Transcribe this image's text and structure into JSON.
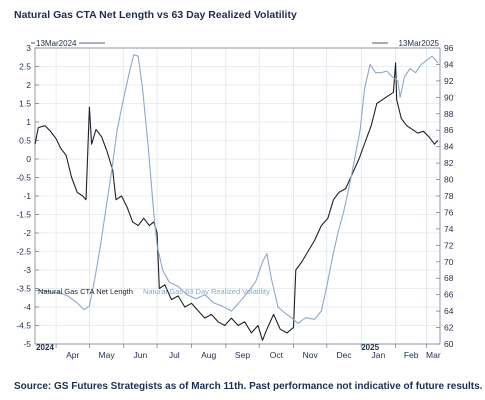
{
  "title": "Natural Gas CTA Net Length vs 63 Day Realized Volatility",
  "source": "Source: GS Futures Strategists as of March 11th. Past performance not indicative of future results.",
  "colors": {
    "cta": "#1f2128",
    "vol": "#8fa8c8",
    "grid": "#d6dde8",
    "frame": "#7a8290"
  },
  "chart_data": {
    "type": "line",
    "title": "Natural Gas CTA Net Length vs 63 Day Realized Volatility",
    "start_label": "13Mar2024",
    "end_label": "13Mar2025",
    "x_range": [
      "2024-03-13",
      "2025-03-13"
    ],
    "x_ticks": [
      {
        "date": "2024-04-01",
        "label": "Apr"
      },
      {
        "date": "2024-05-01",
        "label": "May"
      },
      {
        "date": "2024-06-01",
        "label": "Jun"
      },
      {
        "date": "2024-07-01",
        "label": "Jul"
      },
      {
        "date": "2024-08-01",
        "label": "Aug"
      },
      {
        "date": "2024-09-01",
        "label": "Sep"
      },
      {
        "date": "2024-10-01",
        "label": "Oct"
      },
      {
        "date": "2024-11-01",
        "label": "Nov"
      },
      {
        "date": "2024-12-01",
        "label": "Dec"
      },
      {
        "date": "2025-01-01",
        "label": "Jan"
      },
      {
        "date": "2025-02-01",
        "label": "Feb"
      },
      {
        "date": "2025-03-01",
        "label": "Mar"
      }
    ],
    "year_labels": [
      {
        "date": "2024-03-14",
        "label": "2024"
      },
      {
        "date": "2025-01-01",
        "label": "2025"
      }
    ],
    "left_axis": {
      "min": -5,
      "max": 3,
      "ticks": [
        -5,
        -4.5,
        -4,
        -3.5,
        -3,
        -2.5,
        -2,
        -1.5,
        -1,
        -0.5,
        0,
        0.5,
        1,
        1.5,
        2,
        2.5,
        3
      ]
    },
    "right_axis": {
      "min": 60,
      "max": 96,
      "ticks": [
        60,
        62,
        64,
        66,
        68,
        70,
        72,
        74,
        76,
        78,
        80,
        82,
        84,
        86,
        88,
        90,
        92,
        94,
        96
      ]
    },
    "grid": true,
    "series": [
      {
        "name": "Natural Gas CTA Net Length",
        "axis": "left",
        "points": [
          [
            "2024-03-13",
            0.4
          ],
          [
            "2024-03-16",
            0.85
          ],
          [
            "2024-03-22",
            0.9
          ],
          [
            "2024-03-27",
            0.75
          ],
          [
            "2024-04-01",
            0.55
          ],
          [
            "2024-04-05",
            0.3
          ],
          [
            "2024-04-10",
            0.1
          ],
          [
            "2024-04-15",
            -0.5
          ],
          [
            "2024-04-20",
            -0.9
          ],
          [
            "2024-04-25",
            -1.0
          ],
          [
            "2024-04-28",
            -1.1
          ],
          [
            "2024-05-01",
            1.4
          ],
          [
            "2024-05-03",
            0.4
          ],
          [
            "2024-05-07",
            0.8
          ],
          [
            "2024-05-12",
            0.6
          ],
          [
            "2024-05-17",
            0.2
          ],
          [
            "2024-05-22",
            -0.3
          ],
          [
            "2024-05-25",
            -1.1
          ],
          [
            "2024-05-30",
            -1.0
          ],
          [
            "2024-06-04",
            -1.3
          ],
          [
            "2024-06-09",
            -1.7
          ],
          [
            "2024-06-14",
            -1.8
          ],
          [
            "2024-06-19",
            -1.6
          ],
          [
            "2024-06-24",
            -1.8
          ],
          [
            "2024-06-28",
            -1.7
          ],
          [
            "2024-07-01",
            -2.0
          ],
          [
            "2024-07-03",
            -3.5
          ],
          [
            "2024-07-08",
            -3.4
          ],
          [
            "2024-07-14",
            -3.8
          ],
          [
            "2024-07-20",
            -3.7
          ],
          [
            "2024-07-26",
            -4.0
          ],
          [
            "2024-08-01",
            -3.9
          ],
          [
            "2024-08-07",
            -4.1
          ],
          [
            "2024-08-13",
            -4.3
          ],
          [
            "2024-08-19",
            -4.2
          ],
          [
            "2024-08-25",
            -4.4
          ],
          [
            "2024-08-31",
            -4.5
          ],
          [
            "2024-09-06",
            -4.3
          ],
          [
            "2024-09-12",
            -4.5
          ],
          [
            "2024-09-18",
            -4.4
          ],
          [
            "2024-09-24",
            -4.7
          ],
          [
            "2024-09-30",
            -4.5
          ],
          [
            "2024-10-04",
            -4.9
          ],
          [
            "2024-10-08",
            -4.6
          ],
          [
            "2024-10-14",
            -4.2
          ],
          [
            "2024-10-20",
            -4.6
          ],
          [
            "2024-10-26",
            -4.7
          ],
          [
            "2024-11-01",
            -4.55
          ],
          [
            "2024-11-03",
            -3.0
          ],
          [
            "2024-11-08",
            -2.8
          ],
          [
            "2024-11-14",
            -2.5
          ],
          [
            "2024-11-20",
            -2.2
          ],
          [
            "2024-11-26",
            -1.8
          ],
          [
            "2024-12-02",
            -1.6
          ],
          [
            "2024-12-07",
            -1.1
          ],
          [
            "2024-12-12",
            -0.9
          ],
          [
            "2024-12-18",
            -0.8
          ],
          [
            "2024-12-24",
            -0.4
          ],
          [
            "2024-12-30",
            0.0
          ],
          [
            "2025-01-05",
            0.5
          ],
          [
            "2025-01-10",
            0.9
          ],
          [
            "2025-01-15",
            1.5
          ],
          [
            "2025-01-20",
            1.6
          ],
          [
            "2025-01-25",
            1.7
          ],
          [
            "2025-01-30",
            1.8
          ],
          [
            "2025-02-01",
            2.6
          ],
          [
            "2025-02-02",
            1.6
          ],
          [
            "2025-02-06",
            1.1
          ],
          [
            "2025-02-11",
            0.9
          ],
          [
            "2025-02-16",
            0.8
          ],
          [
            "2025-02-21",
            0.7
          ],
          [
            "2025-02-26",
            0.75
          ],
          [
            "2025-03-03",
            0.6
          ],
          [
            "2025-03-08",
            0.4
          ],
          [
            "2025-03-11",
            0.5
          ]
        ]
      },
      {
        "name": "Natural Gas 63 Day Realized Volatility",
        "axis": "right",
        "points": [
          [
            "2024-03-13",
            66.5
          ],
          [
            "2024-03-20",
            66.5
          ],
          [
            "2024-03-28",
            66.3
          ],
          [
            "2024-04-05",
            66.2
          ],
          [
            "2024-04-12",
            65.8
          ],
          [
            "2024-04-20",
            65.0
          ],
          [
            "2024-04-26",
            64.2
          ],
          [
            "2024-05-01",
            64.6
          ],
          [
            "2024-05-06",
            68.0
          ],
          [
            "2024-05-11",
            72.0
          ],
          [
            "2024-05-16",
            76.5
          ],
          [
            "2024-05-21",
            81.0
          ],
          [
            "2024-05-26",
            86.0
          ],
          [
            "2024-06-01",
            90.0
          ],
          [
            "2024-06-06",
            93.0
          ],
          [
            "2024-06-10",
            95.2
          ],
          [
            "2024-06-14",
            95.0
          ],
          [
            "2024-06-18",
            91.0
          ],
          [
            "2024-06-23",
            84.0
          ],
          [
            "2024-06-28",
            76.0
          ],
          [
            "2024-07-01",
            72.0
          ],
          [
            "2024-07-06",
            69.0
          ],
          [
            "2024-07-12",
            67.5
          ],
          [
            "2024-07-20",
            67.0
          ],
          [
            "2024-07-28",
            66.0
          ],
          [
            "2024-08-05",
            65.5
          ],
          [
            "2024-08-13",
            66.0
          ],
          [
            "2024-08-21",
            65.0
          ],
          [
            "2024-08-29",
            64.6
          ],
          [
            "2024-09-06",
            64.0
          ],
          [
            "2024-09-14",
            65.2
          ],
          [
            "2024-09-22",
            66.5
          ],
          [
            "2024-09-28",
            67.6
          ],
          [
            "2024-10-04",
            70.0
          ],
          [
            "2024-10-08",
            71.0
          ],
          [
            "2024-10-12",
            68.0
          ],
          [
            "2024-10-18",
            64.5
          ],
          [
            "2024-10-24",
            63.8
          ],
          [
            "2024-10-30",
            63.2
          ],
          [
            "2024-11-05",
            62.5
          ],
          [
            "2024-11-12",
            63.2
          ],
          [
            "2024-11-20",
            63.0
          ],
          [
            "2024-11-26",
            64.0
          ],
          [
            "2024-12-01",
            67.0
          ],
          [
            "2024-12-06",
            70.5
          ],
          [
            "2024-12-11",
            73.5
          ],
          [
            "2024-12-16",
            76.0
          ],
          [
            "2024-12-21",
            79.0
          ],
          [
            "2024-12-26",
            82.5
          ],
          [
            "2024-12-31",
            86.0
          ],
          [
            "2025-01-04",
            91.0
          ],
          [
            "2025-01-09",
            94.0
          ],
          [
            "2025-01-14",
            93.0
          ],
          [
            "2025-01-19",
            93.0
          ],
          [
            "2025-01-24",
            93.2
          ],
          [
            "2025-01-29",
            92.5
          ],
          [
            "2025-02-03",
            92.0
          ],
          [
            "2025-02-05",
            90.0
          ],
          [
            "2025-02-09",
            92.5
          ],
          [
            "2025-02-14",
            93.5
          ],
          [
            "2025-02-19",
            93.0
          ],
          [
            "2025-02-24",
            94.0
          ],
          [
            "2025-03-01",
            94.5
          ],
          [
            "2025-03-06",
            95.0
          ],
          [
            "2025-03-11",
            94.2
          ]
        ]
      }
    ]
  }
}
